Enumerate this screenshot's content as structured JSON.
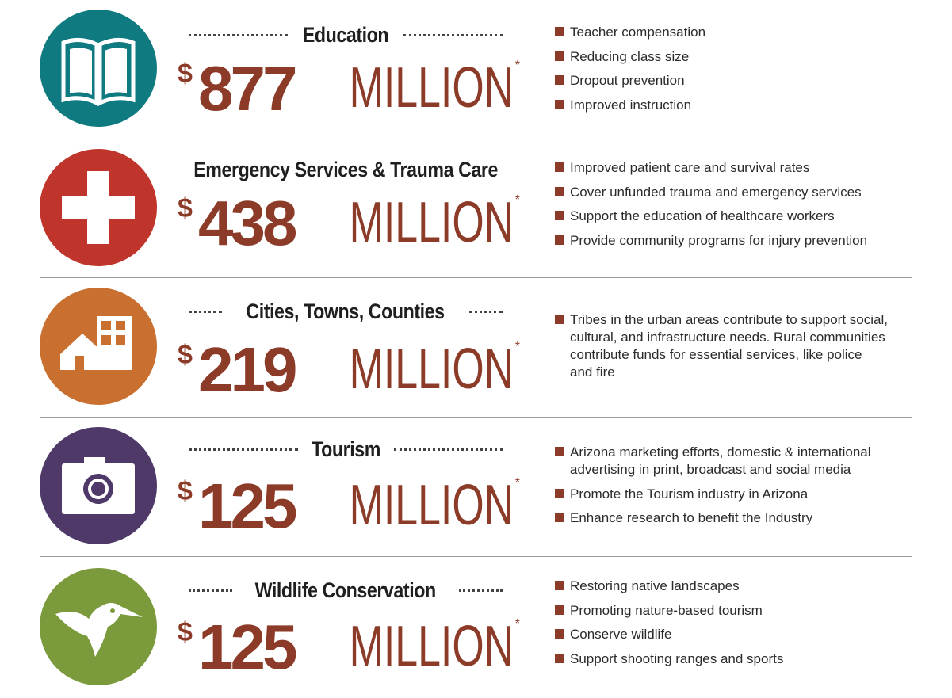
{
  "colors": {
    "accent": "#8c3b28",
    "education": "#0f7a80",
    "emergency": "#c0352b",
    "cities": "#c96f2f",
    "tourism": "#4e3968",
    "wildlife": "#7b9a3c"
  },
  "sections": [
    {
      "title": "Education",
      "icon": "book-icon",
      "dollar": "$",
      "amount": "877",
      "unit": "MILLION",
      "footnote": "*",
      "bullets": [
        "Teacher compensation",
        "Reducing class size",
        "Dropout prevention",
        "Improved instruction"
      ]
    },
    {
      "title": "Emergency Services & Trauma Care",
      "icon": "medical-cross-icon",
      "dollar": "$",
      "amount": "438",
      "unit": "MILLION",
      "footnote": "*",
      "bullets": [
        "Improved patient care and survival rates",
        "Cover unfunded trauma and emergency services",
        "Support the education of healthcare workers",
        "Provide community programs for injury prevention"
      ]
    },
    {
      "title": "Cities, Towns, Counties",
      "icon": "house-building-icon",
      "dollar": "$",
      "amount": "219",
      "unit": "MILLION",
      "footnote": "*",
      "bullets": [
        "Tribes in the urban areas contribute to support social, cultural, and infrastructure needs. Rural communities contribute funds for essential services, like police and fire"
      ]
    },
    {
      "title": "Tourism",
      "icon": "camera-icon",
      "dollar": "$",
      "amount": "125",
      "unit": "MILLION",
      "footnote": "*",
      "bullets": [
        "Arizona marketing efforts, domestic & international advertising in print, broadcast and social media",
        "Promote the Tourism industry in Arizona",
        "Enhance research to benefit the Industry"
      ]
    },
    {
      "title": "Wildlife Conservation",
      "icon": "hummingbird-icon",
      "dollar": "$",
      "amount": "125",
      "unit": "MILLION",
      "footnote": "*",
      "bullets": [
        "Restoring native landscapes",
        "Promoting nature-based tourism",
        "Conserve wildlife",
        "Support shooting ranges and sports"
      ]
    }
  ]
}
